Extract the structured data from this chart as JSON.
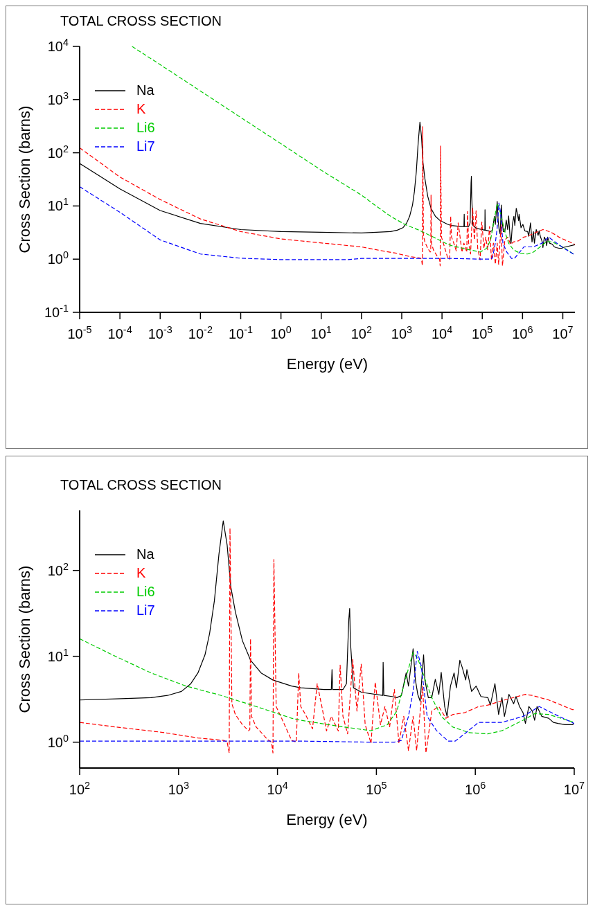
{
  "chart_data": [
    {
      "type": "line",
      "title": "TOTAL CROSS SECTION",
      "xlabel": "Energy (eV)",
      "ylabel": "Cross Section (barns)",
      "log": "xy",
      "legend": "top left",
      "xlim": [
        1e-05,
        20000000.0
      ],
      "xticks": [
        {
          "value": 1e-05,
          "label": "10$^{-5}$"
        },
        {
          "value": 0.0001,
          "label": "10$^{-4}$"
        },
        {
          "value": 0.001,
          "label": "10$^{-3}$"
        },
        {
          "value": 0.01,
          "label": "10$^{-2}$"
        },
        {
          "value": 0.1,
          "label": "10$^{-1}$"
        },
        {
          "value": 1,
          "label": "10$^{0}$"
        },
        {
          "value": 10,
          "label": "10$^{1}$"
        },
        {
          "value": 100,
          "label": "10$^{2}$"
        },
        {
          "value": 1000,
          "label": "10$^{3}$"
        },
        {
          "value": 10000,
          "label": "10$^{4}$"
        },
        {
          "value": 100000,
          "label": "10$^{5}$"
        },
        {
          "value": 1000000,
          "label": "10$^{6}$"
        },
        {
          "value": 10000000,
          "label": "10$^{7}$"
        }
      ],
      "ylim": [
        0.1,
        10000
      ],
      "yticks": [
        {
          "value": 0.1,
          "label": "10$^{-1}$"
        },
        {
          "value": 1,
          "label": "10$^{0}$"
        },
        {
          "value": 10,
          "label": "10$^{1}$"
        },
        {
          "value": 100,
          "label": "10$^{2}$"
        },
        {
          "value": 1000,
          "label": "10$^{3}$"
        },
        {
          "value": 10000,
          "label": "10$^{4}$"
        }
      ],
      "series": [
        {
          "name": "Na",
          "color": "#000000",
          "line_style": "solid",
          "x": [
            1e-05,
            0.0001,
            0.001,
            0.01,
            0.1,
            1,
            10,
            100,
            234,
            528,
            774,
            1070,
            1330,
            1570,
            1850,
            2060,
            2300,
            2560,
            2830,
            3100,
            3370,
            3750,
            4420,
            5340,
            6830,
            8980,
            13900,
            17200,
            29700,
            35000,
            35600,
            36100,
            45900,
            49800,
            52600,
            53700,
            54600,
            58600,
            71000,
            116000,
            117000,
            119000,
            144000,
            161000,
            179000,
            200000,
            211000,
            235000,
            248000,
            262000,
            277000,
            300000,
            309000,
            335000,
            363000,
            394000,
            428000,
            452000,
            490000,
            518000,
            561000,
            610000,
            644000,
            698000,
            738000,
            800000,
            822000,
            917000,
            1020000,
            1140000,
            1340000,
            1420000,
            1580000,
            1720000,
            1860000,
            1970000,
            2190000,
            2440000,
            2580000,
            2800000,
            3040000,
            3210000,
            3480000,
            3770000,
            3980000,
            4210000,
            4690000,
            5520000,
            6160000,
            6870000,
            8090000,
            9530000,
            10000000,
            20000000
          ],
          "values": [
            63,
            21,
            8.2,
            4.7,
            3.6,
            3.3,
            3.2,
            3.1,
            3.2,
            3.3,
            3.5,
            3.9,
            4.8,
            6.4,
            10.4,
            18.5,
            44,
            155,
            378,
            196,
            65,
            33,
            15.2,
            9.0,
            6.4,
            5.3,
            4.5,
            4.3,
            4.1,
            4.1,
            7.0,
            4.1,
            4.1,
            4.8,
            27,
            36,
            14.9,
            4.3,
            3.8,
            3.5,
            8.5,
            3.5,
            3.4,
            3.3,
            3.5,
            6.4,
            4.5,
            12.2,
            5.3,
            3.6,
            3.0,
            10.4,
            5.3,
            3.3,
            3.3,
            5.4,
            3.6,
            6.5,
            2.6,
            2.0,
            4.5,
            6.4,
            4.3,
            9.0,
            7.4,
            5.3,
            7.0,
            3.9,
            4.5,
            3.4,
            3.3,
            2.7,
            4.8,
            2.1,
            3.3,
            2.0,
            3.6,
            2.8,
            3.4,
            2.6,
            2.2,
            1.65,
            2.6,
            2.3,
            1.8,
            2.6,
            2.0,
            1.9,
            1.7,
            1.65,
            1.6,
            1.6,
            1.65,
            1.87
          ]
        },
        {
          "name": "K",
          "color": "#ff0000",
          "line_style": "dashed",
          "x": [
            1e-05,
            0.0001,
            0.001,
            0.01,
            0.1,
            1,
            46,
            100,
            234,
            695,
            1570,
            2860,
            3100,
            3250,
            3310,
            3460,
            3750,
            4420,
            5090,
            5250,
            5340,
            5460,
            6100,
            7960,
            8700,
            9000,
            9200,
            9700,
            11000,
            13900,
            15500,
            16400,
            17200,
            19200,
            22600,
            25200,
            28100,
            31300,
            35000,
            41200,
            43000,
            45900,
            51200,
            57600,
            63600,
            70200,
            77000,
            88300,
            97300,
            110000,
            122000,
            136000,
            152000,
            169000,
            189000,
            211000,
            235000,
            255000,
            293000,
            317000,
            363000,
            428000,
            504000,
            593000,
            778000,
            1080000,
            1340000,
            1970000,
            3210000,
            3770000,
            5520000,
            9530000,
            10000000,
            20000000
          ],
          "values": [
            124,
            35,
            13.2,
            5.7,
            3.3,
            2.4,
            1.8,
            1.7,
            1.5,
            1.3,
            1.12,
            1.05,
            1.0,
            0.75,
            310,
            2.8,
            2.1,
            1.6,
            1.36,
            1.4,
            16,
            2.0,
            1.5,
            1.07,
            1.0,
            0.75,
            134,
            2.6,
            1.9,
            1.05,
            1.0,
            6.4,
            2.6,
            2.1,
            1.43,
            4.8,
            2.6,
            1.35,
            2.0,
            1.35,
            7.9,
            2.0,
            1.25,
            9.2,
            2.3,
            8.1,
            1.6,
            0.97,
            5.0,
            1.6,
            2.6,
            1.5,
            4.1,
            0.97,
            2.0,
            0.8,
            2.0,
            0.8,
            4.5,
            0.75,
            2.3,
            2.6,
            1.9,
            2.1,
            2.2,
            2.6,
            2.7,
            3.1,
            3.6,
            3.5,
            3.1,
            2.4,
            2.4,
            1.9
          ]
        },
        {
          "name": "Li6",
          "color": "#00cc00",
          "line_style": "dashed",
          "x": [
            0.0002,
            0.001,
            0.01,
            0.1,
            1,
            10,
            100,
            234,
            528,
            1190,
            2700,
            6100,
            13900,
            17200,
            39000,
            88300,
            129000,
            161000,
            200000,
            235000,
            262000,
            309000,
            363000,
            452000,
            593000,
            868000,
            1340000,
            1860000,
            3040000,
            3980000,
            5520000,
            10000000,
            20000000
          ],
          "values": [
            10000,
            4540,
            1450,
            462,
            148,
            47,
            16,
            9.9,
            6.4,
            4.5,
            3.5,
            2.6,
            1.9,
            1.8,
            1.55,
            1.36,
            1.6,
            2.3,
            5.8,
            11.1,
            9.4,
            5.5,
            3.3,
            2.0,
            1.5,
            1.29,
            1.25,
            1.36,
            1.8,
            2.15,
            2.1,
            1.7,
            1.2
          ]
        },
        {
          "name": "Li7",
          "color": "#0000ff",
          "line_style": "dashed",
          "x": [
            1e-05,
            0.0001,
            0.001,
            0.01,
            0.1,
            1,
            46,
            100,
            17200,
            88300,
            152000,
            179000,
            211000,
            235000,
            259000,
            284000,
            326000,
            406000,
            532000,
            627000,
            778000,
            1080000,
            1860000,
            3040000,
            4440000,
            6160000,
            10000000,
            20000000
          ],
          "values": [
            23,
            7.6,
            2.3,
            1.25,
            1.04,
            0.98,
            0.98,
            1.03,
            1.03,
            1.0,
            1.0,
            1.05,
            2.0,
            3.9,
            11.4,
            7.7,
            2.0,
            1.36,
            1.03,
            1.03,
            1.25,
            1.7,
            1.7,
            2.0,
            2.6,
            2.15,
            1.65,
            1.2
          ]
        }
      ]
    },
    {
      "type": "line",
      "title": "TOTAL CROSS SECTION",
      "xlabel": "Energy (eV)",
      "ylabel": "Cross Section (barns)",
      "log": "xy",
      "legend": "top left",
      "xlim": [
        100,
        10000000
      ],
      "xticks": [
        {
          "value": 100,
          "label": "10$^{2}$"
        },
        {
          "value": 1000,
          "label": "10$^{3}$"
        },
        {
          "value": 10000,
          "label": "10$^{4}$"
        },
        {
          "value": 100000,
          "label": "10$^{5}$"
        },
        {
          "value": 1000000,
          "label": "10$^{6}$"
        },
        {
          "value": 10000000,
          "label": "10$^{7}$"
        }
      ],
      "ylim": [
        0.5,
        500
      ],
      "yticks": [
        {
          "value": 1,
          "label": "10$^{0}$"
        },
        {
          "value": 10,
          "label": "10$^{1}$"
        },
        {
          "value": 100,
          "label": "10$^{2}$"
        }
      ],
      "series": [
        {
          "name": "Na",
          "color": "#000000",
          "line_style": "solid",
          "x": [
            100,
            234,
            528,
            774,
            1070,
            1330,
            1570,
            1850,
            2060,
            2300,
            2560,
            2830,
            3100,
            3370,
            3750,
            4420,
            5340,
            6830,
            8980,
            13900,
            17200,
            29700,
            35000,
            35600,
            36100,
            45900,
            49800,
            52600,
            53700,
            54600,
            58600,
            71000,
            116000,
            117000,
            119000,
            144000,
            161000,
            179000,
            200000,
            211000,
            235000,
            248000,
            262000,
            277000,
            300000,
            309000,
            335000,
            363000,
            394000,
            428000,
            452000,
            490000,
            518000,
            561000,
            610000,
            644000,
            698000,
            738000,
            800000,
            822000,
            917000,
            1020000,
            1140000,
            1340000,
            1420000,
            1580000,
            1720000,
            1860000,
            1970000,
            2190000,
            2440000,
            2580000,
            2800000,
            3040000,
            3210000,
            3480000,
            3770000,
            3980000,
            4210000,
            4690000,
            5520000,
            6160000,
            6870000,
            8090000,
            9530000,
            10000000
          ],
          "values": [
            3.1,
            3.2,
            3.3,
            3.5,
            3.9,
            4.8,
            6.4,
            10.4,
            18.5,
            44,
            155,
            378,
            196,
            65,
            33,
            15.2,
            9.0,
            6.4,
            5.3,
            4.5,
            4.3,
            4.1,
            4.1,
            7.0,
            4.1,
            4.1,
            4.8,
            27,
            36,
            14.9,
            4.3,
            3.8,
            3.5,
            8.5,
            3.5,
            3.4,
            3.3,
            3.5,
            6.4,
            4.5,
            12.2,
            5.3,
            3.6,
            3.0,
            10.4,
            5.3,
            3.3,
            3.3,
            5.4,
            3.6,
            6.5,
            2.6,
            2.0,
            4.5,
            6.4,
            4.3,
            9.0,
            7.4,
            5.3,
            7.0,
            3.9,
            4.5,
            3.4,
            3.3,
            2.7,
            4.8,
            2.1,
            3.3,
            2.0,
            3.6,
            2.8,
            3.4,
            2.6,
            2.2,
            1.65,
            2.6,
            2.3,
            1.8,
            2.6,
            2.0,
            1.9,
            1.7,
            1.65,
            1.6,
            1.6,
            1.65
          ]
        },
        {
          "name": "K",
          "color": "#ff0000",
          "line_style": "dashed",
          "x": [
            100,
            234,
            695,
            1570,
            2860,
            3100,
            3250,
            3310,
            3460,
            3750,
            4420,
            5090,
            5250,
            5340,
            5460,
            6100,
            7960,
            8700,
            9000,
            9200,
            9700,
            11000,
            13900,
            15500,
            16400,
            17200,
            19200,
            22600,
            25200,
            28100,
            31300,
            35000,
            41200,
            43000,
            45900,
            51200,
            57600,
            63600,
            70200,
            77000,
            88300,
            97300,
            110000,
            122000,
            136000,
            152000,
            169000,
            189000,
            211000,
            235000,
            255000,
            293000,
            317000,
            363000,
            428000,
            504000,
            593000,
            778000,
            1080000,
            1340000,
            1970000,
            3210000,
            3770000,
            5520000,
            9530000,
            10000000
          ],
          "values": [
            1.7,
            1.5,
            1.3,
            1.12,
            1.05,
            1.0,
            0.75,
            310,
            2.8,
            2.1,
            1.6,
            1.36,
            1.4,
            16,
            2.0,
            1.5,
            1.07,
            1.0,
            0.75,
            134,
            2.6,
            1.9,
            1.05,
            1.0,
            6.4,
            2.6,
            2.1,
            1.43,
            4.8,
            2.6,
            1.35,
            2.0,
            1.35,
            7.9,
            2.0,
            1.25,
            9.2,
            2.3,
            8.1,
            1.6,
            0.97,
            5.0,
            1.6,
            2.6,
            1.5,
            4.1,
            0.97,
            2.0,
            0.8,
            2.0,
            0.8,
            4.5,
            0.75,
            2.3,
            2.6,
            1.9,
            2.1,
            2.2,
            2.6,
            2.7,
            3.1,
            3.6,
            3.5,
            3.1,
            2.4,
            2.4
          ]
        },
        {
          "name": "Li6",
          "color": "#00cc00",
          "line_style": "dashed",
          "x": [
            100,
            234,
            528,
            1190,
            2700,
            6100,
            13900,
            17200,
            39000,
            88300,
            129000,
            161000,
            200000,
            235000,
            262000,
            309000,
            363000,
            452000,
            593000,
            868000,
            1340000,
            1860000,
            3040000,
            3980000,
            5520000,
            10000000
          ],
          "values": [
            16,
            9.9,
            6.4,
            4.5,
            3.5,
            2.6,
            1.9,
            1.8,
            1.55,
            1.36,
            1.6,
            2.3,
            5.8,
            11.1,
            9.4,
            5.5,
            3.3,
            2.0,
            1.5,
            1.29,
            1.25,
            1.36,
            1.8,
            2.15,
            2.1,
            1.7
          ]
        },
        {
          "name": "Li7",
          "color": "#0000ff",
          "line_style": "dashed",
          "x": [
            100,
            17200,
            88300,
            152000,
            179000,
            211000,
            235000,
            259000,
            284000,
            326000,
            406000,
            532000,
            627000,
            778000,
            1080000,
            1860000,
            3040000,
            4440000,
            6160000,
            10000000
          ],
          "values": [
            1.03,
            1.03,
            1.0,
            1.0,
            1.05,
            2.0,
            3.9,
            11.4,
            7.7,
            2.0,
            1.36,
            1.03,
            1.03,
            1.25,
            1.7,
            1.7,
            2.0,
            2.6,
            2.15,
            1.65
          ]
        }
      ]
    }
  ]
}
